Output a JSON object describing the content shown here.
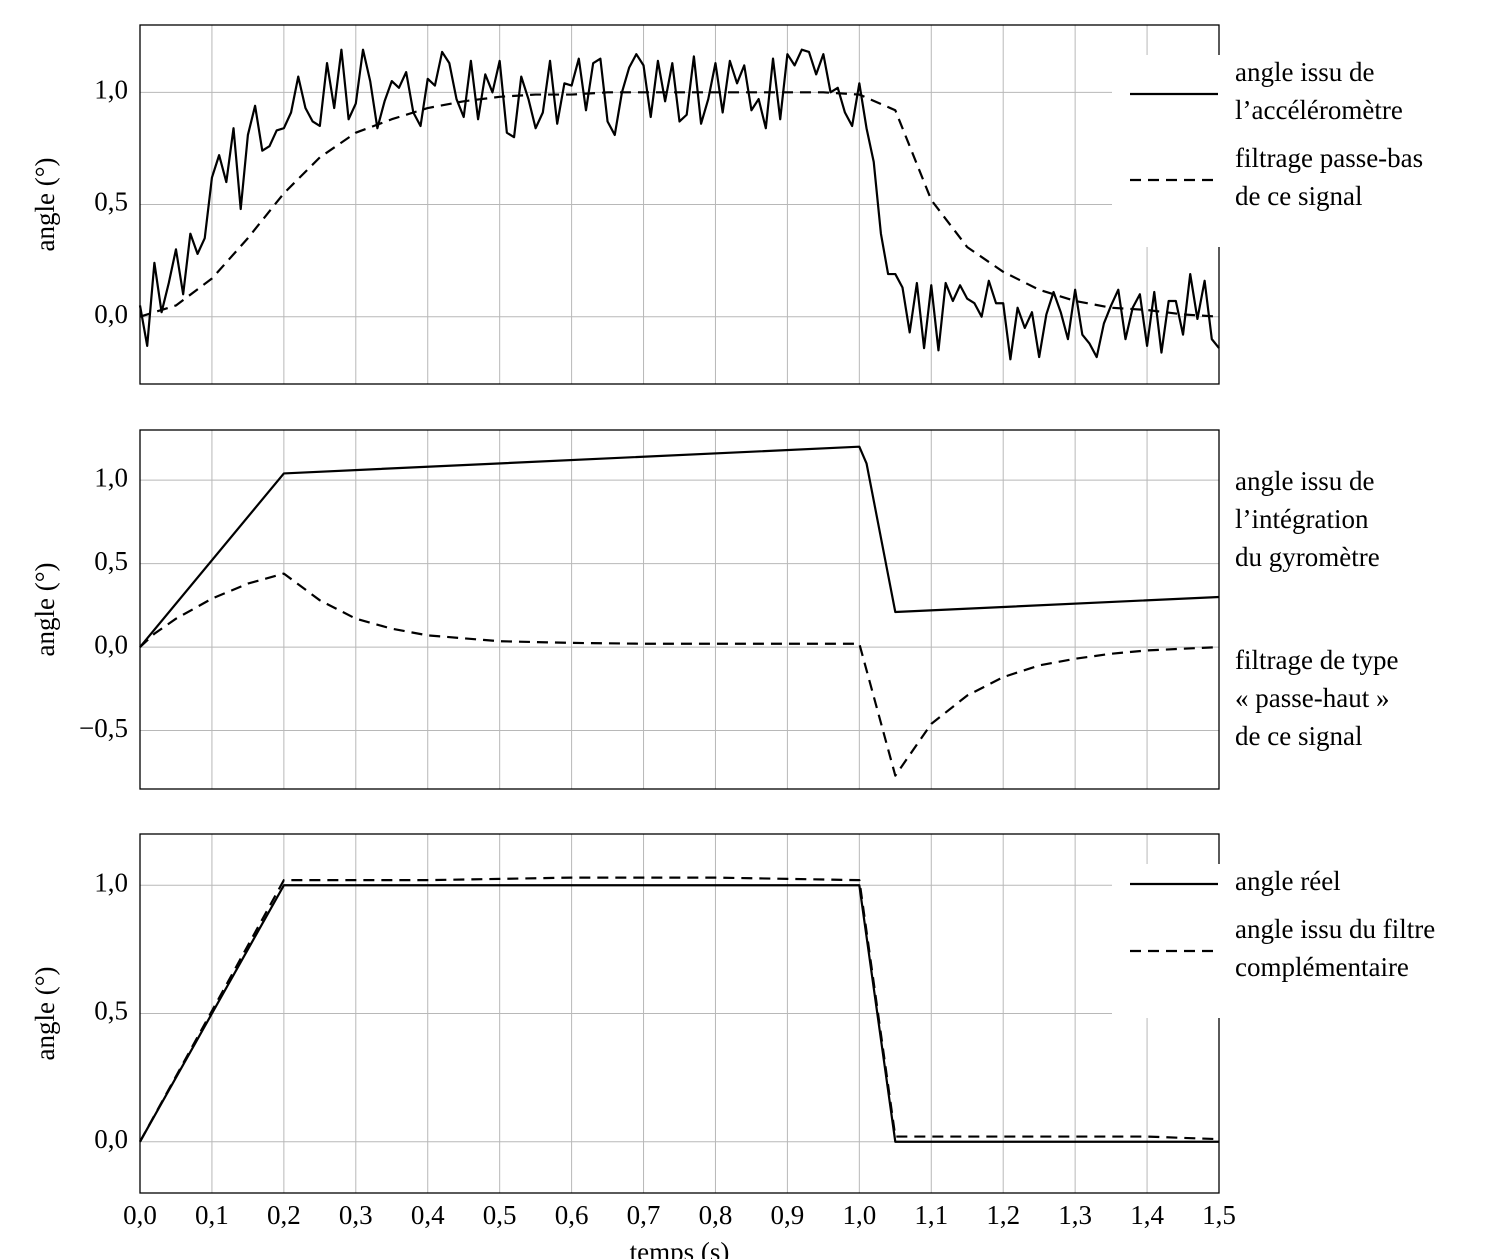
{
  "chart_data": [
    {
      "type": "line",
      "ylabel": "angle (°)",
      "xlim": [
        0,
        1.5
      ],
      "ylim": [
        -0.3,
        1.3
      ],
      "xticks": [
        0,
        0.1,
        0.2,
        0.3,
        0.4,
        0.5,
        0.6,
        0.7,
        0.8,
        0.9,
        1,
        1.1,
        1.2,
        1.3,
        1.4,
        1.5
      ],
      "yticks": [
        {
          "value": 0,
          "label": "0,0"
        },
        {
          "value": 0.5,
          "label": "0,5"
        },
        {
          "value": 1,
          "label": "1,0"
        }
      ],
      "grid": true,
      "legend": "right",
      "series": [
        {
          "name": "angle issu de\nl’accéléromètre",
          "color": "#000000",
          "style": "solid",
          "x": [
            0,
            0.01,
            0.02,
            0.03,
            0.04,
            0.05,
            0.06,
            0.07,
            0.08,
            0.09,
            0.1,
            0.11,
            0.12,
            0.13,
            0.14,
            0.15,
            0.16,
            0.17,
            0.18,
            0.19,
            0.2,
            0.21,
            0.22,
            0.23,
            0.24,
            0.25,
            0.26,
            0.27,
            0.28,
            0.29,
            0.3,
            0.31,
            0.32,
            0.33,
            0.34,
            0.35,
            0.36,
            0.37,
            0.38,
            0.39,
            0.4,
            0.41,
            0.42,
            0.43,
            0.44,
            0.45,
            0.46,
            0.47,
            0.48,
            0.49,
            0.5,
            0.51,
            0.52,
            0.53,
            0.54,
            0.55,
            0.56,
            0.57,
            0.58,
            0.59,
            0.6,
            0.61,
            0.62,
            0.63,
            0.64,
            0.65,
            0.66,
            0.67,
            0.68,
            0.69,
            0.7,
            0.71,
            0.72,
            0.73,
            0.74,
            0.75,
            0.76,
            0.77,
            0.78,
            0.79,
            0.8,
            0.81,
            0.82,
            0.83,
            0.84,
            0.85,
            0.86,
            0.87,
            0.88,
            0.89,
            0.9,
            0.91,
            0.92,
            0.93,
            0.94,
            0.95,
            0.96,
            0.97,
            0.98,
            0.99,
            1,
            1.01,
            1.02,
            1.03,
            1.04,
            1.05,
            1.06,
            1.07,
            1.08,
            1.09,
            1.1,
            1.11,
            1.12,
            1.13,
            1.14,
            1.15,
            1.16,
            1.17,
            1.18,
            1.19,
            1.2,
            1.21,
            1.22,
            1.23,
            1.24,
            1.25,
            1.26,
            1.27,
            1.28,
            1.29,
            1.3,
            1.31,
            1.32,
            1.33,
            1.34,
            1.35,
            1.36,
            1.37,
            1.38,
            1.39,
            1.4,
            1.41,
            1.42,
            1.43,
            1.44,
            1.45,
            1.46,
            1.47,
            1.48,
            1.49,
            1.5
          ],
          "values": [
            0.05,
            -0.13,
            0.24,
            0.02,
            0.15,
            0.3,
            0.1,
            0.37,
            0.28,
            0.35,
            0.62,
            0.72,
            0.6,
            0.84,
            0.48,
            0.81,
            0.94,
            0.74,
            0.76,
            0.83,
            0.84,
            0.91,
            1.07,
            0.93,
            0.87,
            0.85,
            1.13,
            0.93,
            1.19,
            0.88,
            0.95,
            1.19,
            1.05,
            0.84,
            0.96,
            1.05,
            1.02,
            1.09,
            0.91,
            0.85,
            1.06,
            1.03,
            1.18,
            1.13,
            0.97,
            0.89,
            1.14,
            0.88,
            1.08,
            1.0,
            1.14,
            0.82,
            0.8,
            1.07,
            0.97,
            0.84,
            0.91,
            1.14,
            0.86,
            1.04,
            1.03,
            1.15,
            0.92,
            1.13,
            1.15,
            0.87,
            0.81,
            1.0,
            1.11,
            1.17,
            1.12,
            0.89,
            1.14,
            0.96,
            1.13,
            0.87,
            0.9,
            1.16,
            0.86,
            0.97,
            1.13,
            0.91,
            1.14,
            1.04,
            1.12,
            0.92,
            0.97,
            0.84,
            1.15,
            0.88,
            1.17,
            1.12,
            1.19,
            1.18,
            1.08,
            1.17,
            1.0,
            1.02,
            0.91,
            0.85,
            1.04,
            0.84,
            0.69,
            0.37,
            0.19,
            0.19,
            0.13,
            -0.07,
            0.15,
            -0.14,
            0.14,
            -0.15,
            0.15,
            0.07,
            0.14,
            0.08,
            0.06,
            0.0,
            0.16,
            0.06,
            0.06,
            -0.19,
            0.04,
            -0.05,
            0.02,
            -0.18,
            0.01,
            0.11,
            0.02,
            -0.1,
            0.12,
            -0.08,
            -0.12,
            -0.18,
            -0.03,
            0.05,
            0.12,
            -0.1,
            0.04,
            0.1,
            -0.13,
            0.11,
            -0.16,
            0.07,
            0.07,
            -0.08,
            0.19,
            -0.01,
            0.16,
            -0.1,
            -0.14
          ]
        },
        {
          "name": "filtrage passe-bas\nde ce signal",
          "color": "#000000",
          "style": "dashed",
          "x": [
            0,
            0.05,
            0.1,
            0.15,
            0.2,
            0.25,
            0.3,
            0.35,
            0.4,
            0.45,
            0.5,
            0.55,
            0.6,
            0.65,
            0.7,
            0.75,
            0.8,
            0.85,
            0.9,
            0.95,
            1,
            1.05,
            1.1,
            1.15,
            1.2,
            1.25,
            1.3,
            1.35,
            1.4,
            1.45,
            1.5
          ],
          "values": [
            0,
            0.05,
            0.17,
            0.35,
            0.55,
            0.71,
            0.82,
            0.88,
            0.93,
            0.96,
            0.98,
            0.99,
            0.99,
            1,
            1,
            1,
            1,
            1,
            1,
            1,
            0.99,
            0.92,
            0.52,
            0.31,
            0.2,
            0.12,
            0.07,
            0.04,
            0.03,
            0.01,
            0
          ]
        }
      ]
    },
    {
      "type": "line",
      "ylabel": "angle (°)",
      "xlim": [
        0,
        1.5
      ],
      "ylim": [
        -0.85,
        1.3
      ],
      "xticks": [
        0,
        0.1,
        0.2,
        0.3,
        0.4,
        0.5,
        0.6,
        0.7,
        0.8,
        0.9,
        1,
        1.1,
        1.2,
        1.3,
        1.4,
        1.5
      ],
      "yticks": [
        {
          "value": -0.5,
          "label": "−0,5"
        },
        {
          "value": 0,
          "label": "0,0"
        },
        {
          "value": 0.5,
          "label": "0,5"
        },
        {
          "value": 1,
          "label": "1,0"
        }
      ],
      "grid": true,
      "annotations": [
        "angle issu de\nl’intégration\ndu gyromètre",
        "filtrage de type\n« passe-haut »\nde ce signal"
      ],
      "series": [
        {
          "color": "#000000",
          "style": "solid",
          "x": [
            0,
            0.2,
            1,
            1.01,
            1.05,
            1.5
          ],
          "values": [
            0,
            1.04,
            1.2,
            1.1,
            0.21,
            0.3
          ]
        },
        {
          "color": "#000000",
          "style": "dashed",
          "x": [
            0,
            0.02,
            0.05,
            0.1,
            0.15,
            0.2,
            0.25,
            0.3,
            0.35,
            0.4,
            0.5,
            0.6,
            0.7,
            0.8,
            0.9,
            1,
            1.05,
            1.1,
            1.15,
            1.2,
            1.25,
            1.3,
            1.35,
            1.4,
            1.45,
            1.5
          ],
          "values": [
            0,
            0.08,
            0.17,
            0.29,
            0.38,
            0.44,
            0.28,
            0.17,
            0.11,
            0.07,
            0.035,
            0.025,
            0.02,
            0.02,
            0.02,
            0.02,
            -0.77,
            -0.46,
            -0.29,
            -0.18,
            -0.11,
            -0.07,
            -0.04,
            -0.02,
            -0.01,
            0
          ]
        }
      ]
    },
    {
      "type": "line",
      "ylabel": "angle (°)",
      "xlabel": "temps (s)",
      "xlim": [
        0,
        1.5
      ],
      "ylim": [
        -0.2,
        1.2
      ],
      "xticks": [
        {
          "value": 0,
          "label": "0,0"
        },
        {
          "value": 0.1,
          "label": "0,1"
        },
        {
          "value": 0.2,
          "label": "0,2"
        },
        {
          "value": 0.3,
          "label": "0,3"
        },
        {
          "value": 0.4,
          "label": "0,4"
        },
        {
          "value": 0.5,
          "label": "0,5"
        },
        {
          "value": 0.6,
          "label": "0,6"
        },
        {
          "value": 0.7,
          "label": "0,7"
        },
        {
          "value": 0.8,
          "label": "0,8"
        },
        {
          "value": 0.9,
          "label": "0,9"
        },
        {
          "value": 1,
          "label": "1,0"
        },
        {
          "value": 1.1,
          "label": "1,1"
        },
        {
          "value": 1.2,
          "label": "1,2"
        },
        {
          "value": 1.3,
          "label": "1,3"
        },
        {
          "value": 1.4,
          "label": "1,4"
        },
        {
          "value": 1.5,
          "label": "1,5"
        }
      ],
      "yticks": [
        {
          "value": 0,
          "label": "0,0"
        },
        {
          "value": 0.5,
          "label": "0,5"
        },
        {
          "value": 1,
          "label": "1,0"
        }
      ],
      "grid": true,
      "legend": "right",
      "series": [
        {
          "name": "angle réel",
          "color": "#000000",
          "style": "solid",
          "x": [
            0,
            0.2,
            1,
            1.05,
            1.5
          ],
          "values": [
            0,
            1,
            1,
            0,
            0
          ]
        },
        {
          "name": "angle issu du filtre\ncomplémentaire",
          "color": "#000000",
          "style": "dashed",
          "x": [
            0,
            0.2,
            0.4,
            0.6,
            0.8,
            1,
            1.05,
            1.2,
            1.4,
            1.5
          ],
          "values": [
            0,
            1.02,
            1.02,
            1.03,
            1.03,
            1.02,
            0.02,
            0.02,
            0.02,
            0.01
          ]
        }
      ]
    }
  ]
}
